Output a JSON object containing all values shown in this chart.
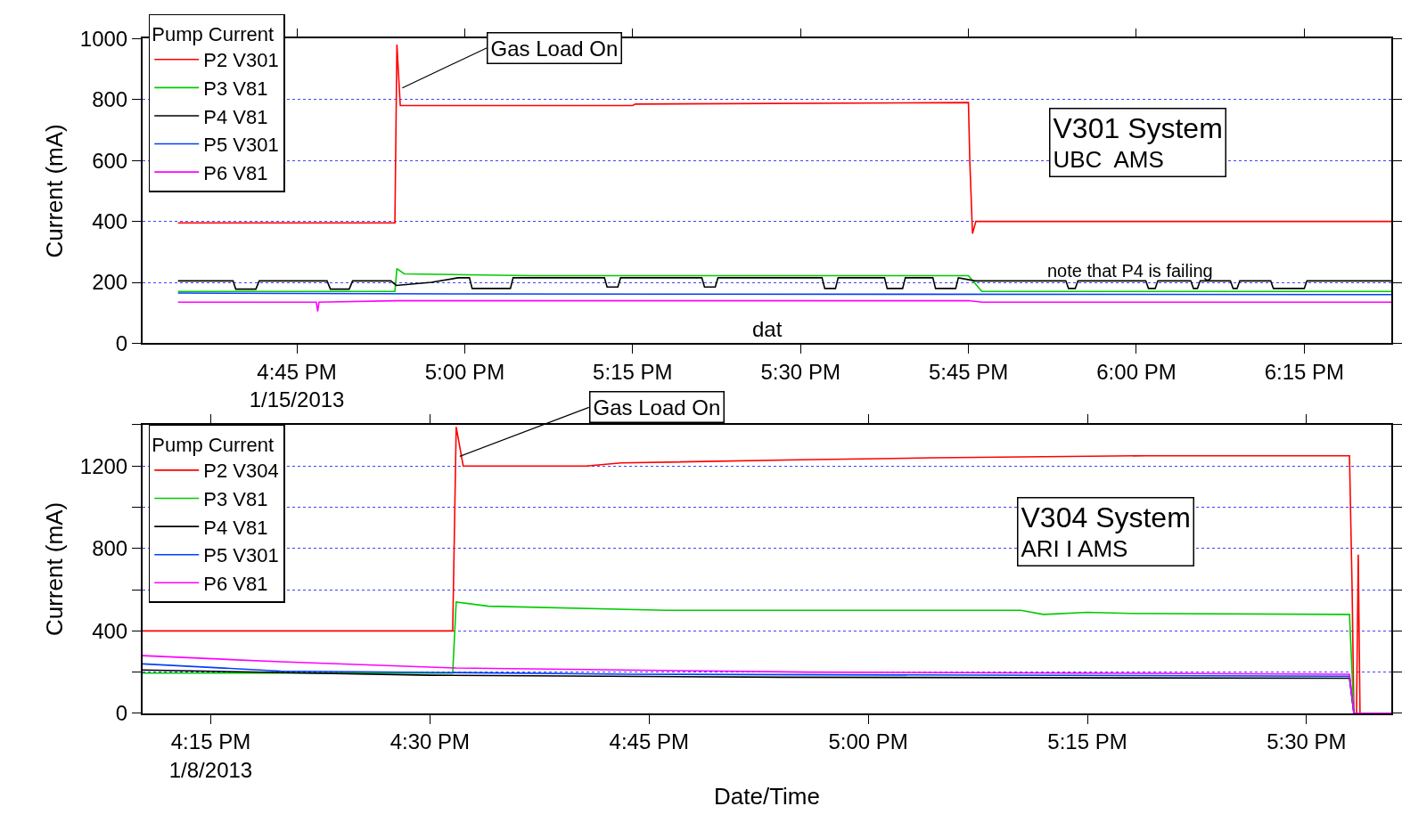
{
  "chart_data": [
    {
      "type": "line",
      "ylabel": "Current (mA)",
      "legend_title": "Pump Current",
      "legend": "top left",
      "grid": "y",
      "marker": "none",
      "line_style": "solid",
      "xlim": [
        16.52,
        18.38
      ],
      "xticks": [
        {
          "value": 16.75,
          "label": "4:45 PM\n1/15/2013"
        },
        {
          "value": 17.0,
          "label": "5:00 PM"
        },
        {
          "value": 17.25,
          "label": "5:15 PM"
        },
        {
          "value": 17.5,
          "label": "5:30 PM"
        },
        {
          "value": 17.75,
          "label": "5:45 PM"
        },
        {
          "value": 18.0,
          "label": "6:00 PM"
        },
        {
          "value": 18.25,
          "label": "6:15 PM"
        }
      ],
      "ylim": [
        0,
        1000
      ],
      "yticks": [
        0,
        200,
        400,
        600,
        800,
        1000
      ],
      "annotations": [
        {
          "text": "Gas Load On",
          "x": 16.907,
          "y": 838
        },
        "V301 System\nUBC  AMS",
        "note that P4 is failing",
        "dat"
      ],
      "series": [
        {
          "name": "P2 V301",
          "color": "#ff0000",
          "x": [
            16.573,
            16.896,
            16.899,
            16.904,
            17.25,
            17.254,
            17.75,
            17.752,
            17.756,
            17.761,
            18.38
          ],
          "values": [
            395,
            395,
            980,
            780,
            780,
            785,
            790,
            600,
            360,
            400,
            400
          ]
        },
        {
          "name": "P3 V81",
          "color": "#00cc00",
          "x": [
            16.573,
            16.896,
            16.899,
            16.91,
            17.0,
            17.1,
            17.5,
            17.75,
            17.77,
            18.38
          ],
          "values": [
            170,
            170,
            245,
            228,
            225,
            222,
            222,
            222,
            170,
            170
          ]
        },
        {
          "name": "P4 V81",
          "color": "#000000",
          "x": [
            16.573,
            16.655,
            16.659,
            16.689,
            16.694,
            16.795,
            16.8,
            16.828,
            16.833,
            16.89,
            16.898,
            16.95,
            16.99,
            17.007,
            17.011,
            17.068,
            17.072,
            17.208,
            17.212,
            17.228,
            17.232,
            17.353,
            17.357,
            17.373,
            17.377,
            17.532,
            17.536,
            17.552,
            17.556,
            17.625,
            17.629,
            17.652,
            17.656,
            17.697,
            17.701,
            17.731,
            17.735,
            17.76,
            17.895,
            17.899,
            17.909,
            17.913,
            18.014,
            18.018,
            18.028,
            18.032,
            18.081,
            18.085,
            18.091,
            18.095,
            18.14,
            18.144,
            18.15,
            18.154,
            18.2,
            18.204,
            18.25,
            18.254,
            18.38
          ],
          "values": [
            205,
            205,
            178,
            178,
            205,
            205,
            178,
            178,
            205,
            205,
            190,
            200,
            215,
            215,
            180,
            180,
            215,
            215,
            185,
            185,
            215,
            215,
            185,
            185,
            215,
            215,
            180,
            180,
            215,
            215,
            180,
            180,
            215,
            215,
            180,
            180,
            215,
            205,
            205,
            180,
            180,
            205,
            205,
            180,
            180,
            205,
            205,
            180,
            180,
            205,
            205,
            180,
            180,
            205,
            205,
            180,
            180,
            205,
            205
          ]
        },
        {
          "name": "P5 V301",
          "color": "#0040ff",
          "x": [
            16.573,
            17.0,
            18.38
          ],
          "values": [
            165,
            162,
            160
          ]
        },
        {
          "name": "P6 V81",
          "color": "#ff00ff",
          "x": [
            16.573,
            16.779,
            16.781,
            16.783,
            16.9,
            17.75,
            17.77,
            18.38
          ],
          "values": [
            135,
            135,
            105,
            135,
            140,
            140,
            135,
            135
          ]
        }
      ]
    },
    {
      "type": "line",
      "ylabel": "Current (mA)",
      "xlabel": "Date/Time",
      "legend_title": "Pump Current",
      "legend": "top left",
      "grid": "y",
      "marker": "none",
      "line_style": "solid",
      "xlim": [
        16.172,
        17.597
      ],
      "xticks": [
        {
          "value": 16.25,
          "label": "4:15 PM\n1/8/2013"
        },
        {
          "value": 16.5,
          "label": "4:30 PM"
        },
        {
          "value": 16.75,
          "label": "4:45 PM"
        },
        {
          "value": 17.0,
          "label": "5:00 PM"
        },
        {
          "value": 17.25,
          "label": "5:15 PM"
        },
        {
          "value": 17.5,
          "label": "5:30 PM"
        }
      ],
      "ylim": [
        0,
        1400
      ],
      "yticks": [
        0,
        {
          "value": 200,
          "label": null
        },
        400,
        {
          "value": 600,
          "label": null
        },
        800,
        {
          "value": 1000,
          "label": null
        },
        1200,
        {
          "value": 1400,
          "label": null
        }
      ],
      "annotations": [
        {
          "text": "Gas Load On",
          "x": 16.534,
          "y": 1247
        },
        "V304 System\nARI I AMS"
      ],
      "series": [
        {
          "name": "P2 V304",
          "color": "#ff0000",
          "x": [
            16.172,
            16.526,
            16.53,
            16.538,
            16.678,
            16.718,
            16.92,
            17.073,
            17.316,
            17.549,
            17.552,
            17.554,
            17.557,
            17.559,
            17.561,
            17.597
          ],
          "values": [
            400,
            400,
            1390,
            1200,
            1200,
            1215,
            1230,
            1240,
            1250,
            1250,
            600,
            0,
            0,
            770,
            0,
            0
          ]
        },
        {
          "name": "P3 V81",
          "color": "#00cc00",
          "x": [
            16.172,
            16.526,
            16.53,
            16.567,
            16.77,
            17.174,
            17.2,
            17.25,
            17.3,
            17.549,
            17.554,
            17.557
          ],
          "values": [
            195,
            195,
            540,
            520,
            500,
            500,
            480,
            490,
            485,
            480,
            0,
            0
          ]
        },
        {
          "name": "P4 V81",
          "color": "#000000",
          "x": [
            16.172,
            16.5,
            16.9,
            17.549,
            17.554,
            17.557
          ],
          "values": [
            210,
            185,
            175,
            170,
            0,
            0
          ]
        },
        {
          "name": "P5 V301",
          "color": "#0040ff",
          "x": [
            16.172,
            16.33,
            16.73,
            17.549,
            17.554,
            17.557
          ],
          "values": [
            240,
            205,
            190,
            180,
            0,
            0
          ]
        },
        {
          "name": "P6 V81",
          "color": "#ff00ff",
          "x": [
            16.172,
            16.33,
            16.53,
            16.93,
            17.549,
            17.554,
            17.597
          ],
          "values": [
            280,
            250,
            220,
            200,
            190,
            0,
            0
          ]
        }
      ]
    }
  ]
}
